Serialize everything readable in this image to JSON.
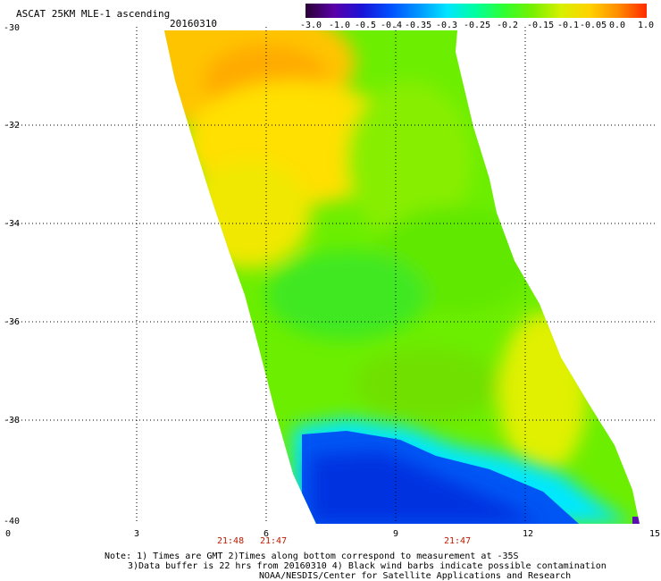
{
  "title": "ASCAT 25KM MLE-1 ascending",
  "date": "20160310",
  "colorbar": {
    "labels": [
      "-3.0",
      "-1.0",
      "-0.5",
      "-0.4",
      "-0.35",
      "-0.3",
      "-0.25",
      "-0.2",
      "-0.15",
      "-0.1",
      "-0.05",
      "0.0",
      "1.0"
    ],
    "colors": [
      "#2a0033",
      "#5a00a8",
      "#1a14d8",
      "#0050ff",
      "#0098ff",
      "#00e6ff",
      "#00ff9c",
      "#30ff30",
      "#78f000",
      "#d8f000",
      "#ffd200",
      "#ff8c00",
      "#ff2a00"
    ]
  },
  "y_ticks": [
    "-30",
    "-32",
    "-34",
    "-36",
    "-38",
    "-40"
  ],
  "x_ticks": [
    "0",
    "3",
    "6",
    "9",
    "12",
    "15"
  ],
  "time_labels": [
    "21:48",
    "21:47",
    "21:47"
  ],
  "notes": [
    "Note: 1) Times are GMT 2)Times along bottom correspond to measurement at -35S",
    "3)Data buffer is 22 hrs from 20160310 4) Black wind barbs indicate possible contamination",
    "NOAA/NESDIS/Center for Satellite Applications and Research"
  ],
  "map": {
    "lon_range": [
      0,
      15
    ],
    "lat_range": [
      -40,
      -30
    ],
    "swath_lon_edges_north": [
      3.6,
      10.4
    ],
    "swath_lon_edges_south": [
      7.1,
      14.6
    ],
    "regions": [
      {
        "label": "north-west warm zone",
        "value_range": [
          -0.05,
          0.0
        ],
        "color": "#ffd000"
      },
      {
        "label": "central swath",
        "value_range": [
          -0.2,
          -0.1
        ],
        "color": "#66ee00"
      },
      {
        "label": "south-west cold zone",
        "value_range": [
          -0.4,
          -0.35
        ],
        "color": "#1048f0"
      }
    ]
  }
}
